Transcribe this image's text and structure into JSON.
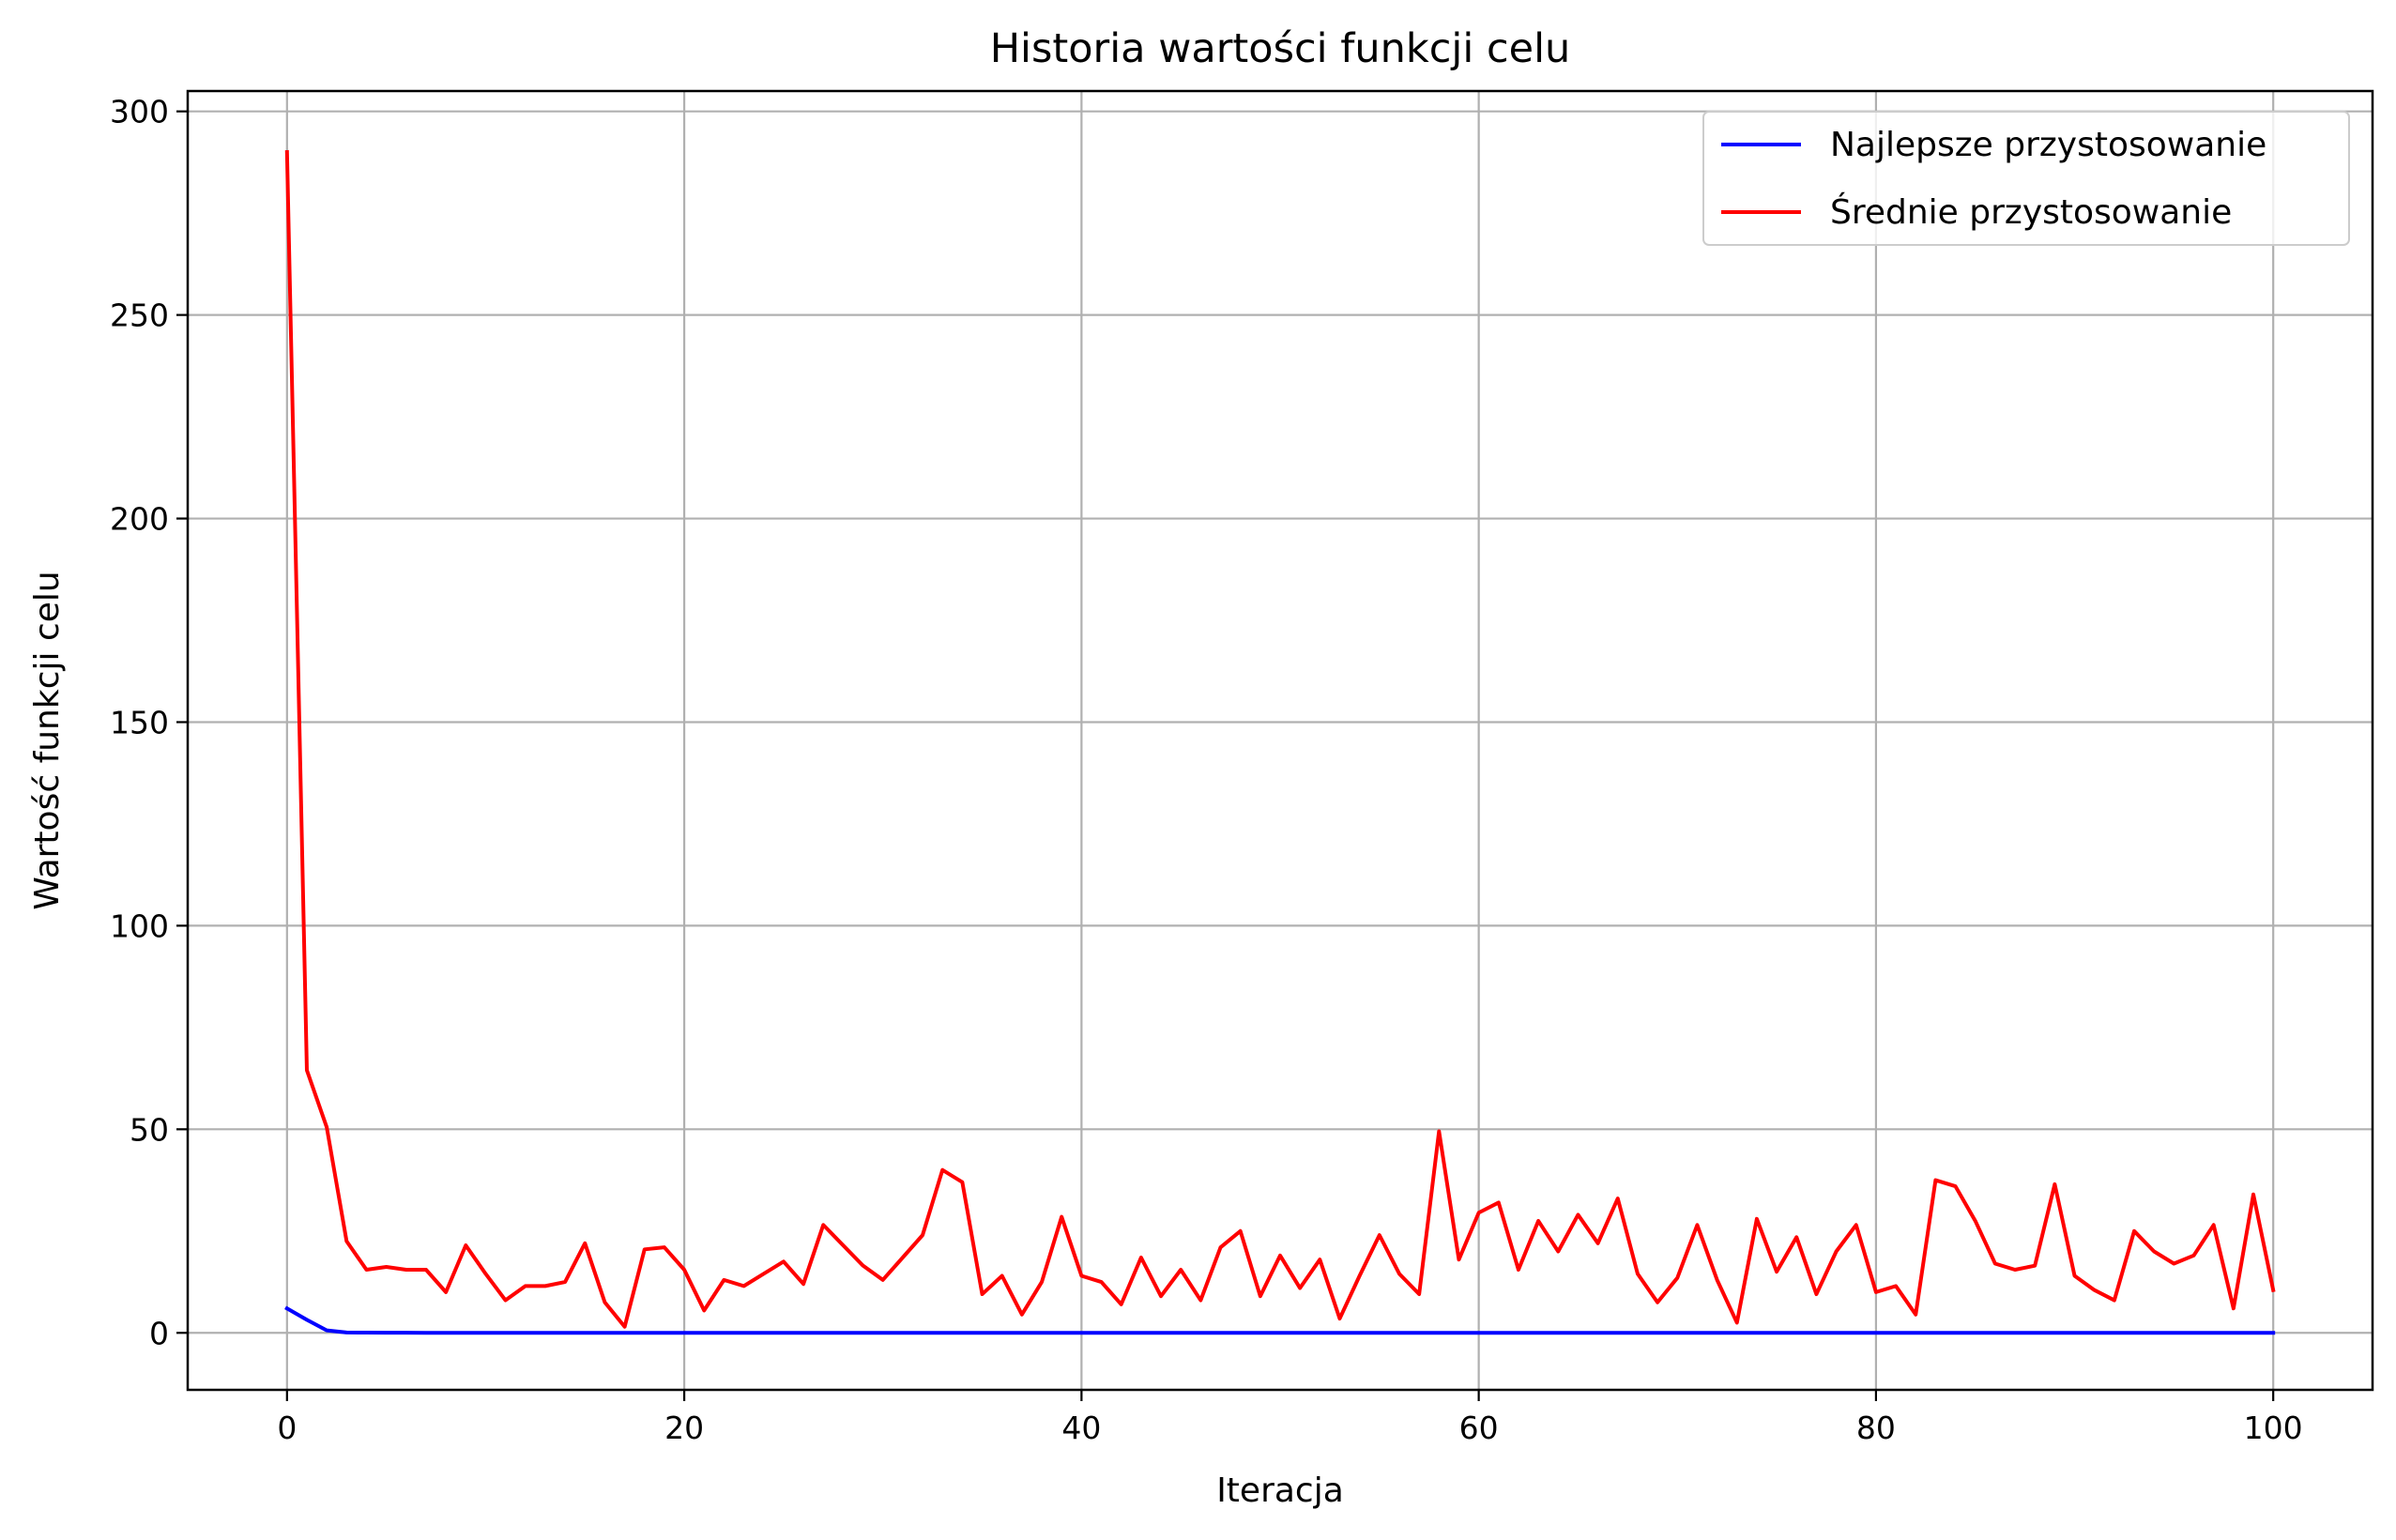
{
  "chart_data": {
    "type": "line",
    "title": "Historia wartości funkcji celu",
    "xlabel": "Iteracja",
    "ylabel": "Wartość funkcji celu",
    "xlim": [
      -5,
      105
    ],
    "ylim": [
      -14,
      305
    ],
    "xticks": [
      0,
      20,
      40,
      60,
      80,
      100
    ],
    "yticks": [
      0,
      50,
      100,
      150,
      200,
      250,
      300
    ],
    "grid": true,
    "legend_position": "top-right",
    "x": [
      0,
      1,
      2,
      3,
      4,
      5,
      6,
      7,
      8,
      9,
      10,
      11,
      12,
      13,
      14,
      15,
      16,
      17,
      18,
      19,
      20,
      21,
      22,
      23,
      24,
      25,
      26,
      27,
      28,
      29,
      30,
      31,
      32,
      33,
      34,
      35,
      36,
      37,
      38,
      39,
      40,
      41,
      42,
      43,
      44,
      45,
      46,
      47,
      48,
      49,
      50,
      51,
      52,
      53,
      54,
      55,
      56,
      57,
      58,
      59,
      60,
      61,
      62,
      63,
      64,
      65,
      66,
      67,
      68,
      69,
      70,
      71,
      72,
      73,
      74,
      75,
      76,
      77,
      78,
      79,
      80,
      81,
      82,
      83,
      84,
      85,
      86,
      87,
      88,
      89,
      90,
      91,
      92,
      93,
      94,
      95,
      96,
      97,
      98,
      99,
      100
    ],
    "series": [
      {
        "name": "Najlepsze przystosowanie",
        "color": "#0000ff",
        "values": [
          6.0,
          3.2,
          0.6,
          0.1,
          0.05,
          0.03,
          0.02,
          0.01,
          0,
          0,
          0,
          0,
          0,
          0,
          0,
          0,
          0,
          0,
          0,
          0,
          0,
          0,
          0,
          0,
          0,
          0,
          0,
          0,
          0,
          0,
          0,
          0,
          0,
          0,
          0,
          0,
          0,
          0,
          0,
          0,
          0,
          0,
          0,
          0,
          0,
          0,
          0,
          0,
          0,
          0,
          0,
          0,
          0,
          0,
          0,
          0,
          0,
          0,
          0,
          0,
          0,
          0,
          0,
          0,
          0,
          0,
          0,
          0,
          0,
          0,
          0,
          0,
          0,
          0,
          0,
          0,
          0,
          0,
          0,
          0,
          0,
          0,
          0,
          0,
          0,
          0,
          0,
          0,
          0,
          0,
          0,
          0,
          0,
          0,
          0,
          0,
          0,
          0,
          0,
          0,
          0
        ]
      },
      {
        "name": "Średnie przystosowanie",
        "color": "#ff0000",
        "values": [
          290,
          64.5,
          50.5,
          22.5,
          15.5,
          16.2,
          15.5,
          15.5,
          10,
          21.5,
          14.5,
          8,
          11.5,
          11.5,
          12.5,
          22,
          7.5,
          1.5,
          20.5,
          21,
          15.5,
          5.5,
          13,
          11.5,
          14.5,
          17.5,
          12,
          26.5,
          21.5,
          16.5,
          13,
          18.5,
          24,
          40,
          37,
          9.5,
          14,
          4.5,
          12.5,
          28.5,
          14,
          12.5,
          7,
          18.5,
          9,
          15.5,
          8,
          21,
          25,
          9,
          19,
          11,
          18,
          3.5,
          14,
          24,
          14.5,
          9.5,
          49.5,
          18,
          29.5,
          32,
          15.5,
          27.5,
          20,
          29,
          22,
          33,
          14.5,
          7.5,
          13.5,
          26.5,
          13,
          2.5,
          28,
          15,
          23.5,
          9.5,
          20,
          26.5,
          10,
          11.5,
          4.5,
          37.5,
          36,
          27.5,
          17,
          15.5,
          16.5,
          36.5,
          14,
          10.5,
          8,
          25,
          20,
          17,
          19,
          26.5,
          6,
          34,
          10.5
        ]
      }
    ]
  }
}
